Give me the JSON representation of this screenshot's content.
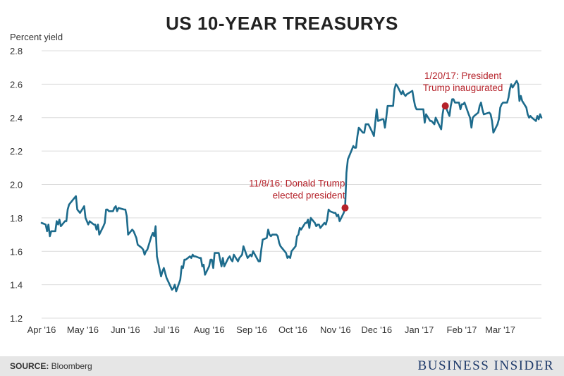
{
  "chart_data": {
    "type": "line",
    "title": "US 10-YEAR TREASURYS",
    "ylabel": "Percent yield",
    "xlabel": "",
    "ylim": [
      1.2,
      2.8
    ],
    "yticks": [
      1.2,
      1.4,
      1.6,
      1.8,
      2.0,
      2.2,
      2.4,
      2.6,
      2.8
    ],
    "ytick_labels": [
      "1.2",
      "1.4",
      "1.6",
      "1.8",
      "2.0",
      "2.2",
      "2.4",
      "2.6",
      "2.8"
    ],
    "xlim": [
      "2016-04-01",
      "2017-03-31"
    ],
    "xticks": [
      "2016-04-01",
      "2016-05-01",
      "2016-06-01",
      "2016-07-01",
      "2016-08-01",
      "2016-09-01",
      "2016-10-01",
      "2016-11-01",
      "2016-12-01",
      "2017-01-01",
      "2017-02-01",
      "2017-03-01"
    ],
    "xtick_labels": [
      "Apr '16",
      "May '16",
      "Jun '16",
      "Jul '16",
      "Aug '16",
      "Sep '16",
      "Oct '16",
      "Nov '16",
      "Dec '16",
      "Jan '17",
      "Feb '17",
      "Mar '17"
    ],
    "grid": "horizontal",
    "line_color": "#1d6b8c",
    "annotation_color": "#b5222a",
    "series": [
      {
        "points": [
          [
            "2016-04-01",
            1.77
          ],
          [
            "2016-04-04",
            1.76
          ],
          [
            "2016-04-05",
            1.72
          ],
          [
            "2016-04-06",
            1.76
          ],
          [
            "2016-04-07",
            1.69
          ],
          [
            "2016-04-08",
            1.72
          ],
          [
            "2016-04-11",
            1.72
          ],
          [
            "2016-04-12",
            1.78
          ],
          [
            "2016-04-13",
            1.76
          ],
          [
            "2016-04-14",
            1.79
          ],
          [
            "2016-04-15",
            1.75
          ],
          [
            "2016-04-18",
            1.78
          ],
          [
            "2016-04-19",
            1.78
          ],
          [
            "2016-04-20",
            1.85
          ],
          [
            "2016-04-21",
            1.88
          ],
          [
            "2016-04-22",
            1.89
          ],
          [
            "2016-04-25",
            1.92
          ],
          [
            "2016-04-26",
            1.93
          ],
          [
            "2016-04-27",
            1.85
          ],
          [
            "2016-04-28",
            1.84
          ],
          [
            "2016-04-29",
            1.83
          ],
          [
            "2016-05-02",
            1.87
          ],
          [
            "2016-05-03",
            1.8
          ],
          [
            "2016-05-04",
            1.78
          ],
          [
            "2016-05-05",
            1.76
          ],
          [
            "2016-05-06",
            1.78
          ],
          [
            "2016-05-09",
            1.76
          ],
          [
            "2016-05-10",
            1.76
          ],
          [
            "2016-05-11",
            1.73
          ],
          [
            "2016-05-12",
            1.76
          ],
          [
            "2016-05-13",
            1.7
          ],
          [
            "2016-05-16",
            1.75
          ],
          [
            "2016-05-17",
            1.77
          ],
          [
            "2016-05-18",
            1.85
          ],
          [
            "2016-05-19",
            1.85
          ],
          [
            "2016-05-20",
            1.84
          ],
          [
            "2016-05-23",
            1.84
          ],
          [
            "2016-05-24",
            1.86
          ],
          [
            "2016-05-25",
            1.87
          ],
          [
            "2016-05-26",
            1.84
          ],
          [
            "2016-05-27",
            1.86
          ],
          [
            "2016-05-31",
            1.85
          ],
          [
            "2016-06-01",
            1.85
          ],
          [
            "2016-06-02",
            1.81
          ],
          [
            "2016-06-03",
            1.7
          ],
          [
            "2016-06-06",
            1.73
          ],
          [
            "2016-06-07",
            1.72
          ],
          [
            "2016-06-08",
            1.7
          ],
          [
            "2016-06-09",
            1.68
          ],
          [
            "2016-06-10",
            1.64
          ],
          [
            "2016-06-13",
            1.62
          ],
          [
            "2016-06-14",
            1.61
          ],
          [
            "2016-06-15",
            1.58
          ],
          [
            "2016-06-16",
            1.6
          ],
          [
            "2016-06-17",
            1.61
          ],
          [
            "2016-06-20",
            1.69
          ],
          [
            "2016-06-21",
            1.71
          ],
          [
            "2016-06-22",
            1.69
          ],
          [
            "2016-06-23",
            1.75
          ],
          [
            "2016-06-24",
            1.57
          ],
          [
            "2016-06-27",
            1.45
          ],
          [
            "2016-06-28",
            1.48
          ],
          [
            "2016-06-29",
            1.5
          ],
          [
            "2016-06-30",
            1.47
          ],
          [
            "2016-07-01",
            1.44
          ],
          [
            "2016-07-05",
            1.37
          ],
          [
            "2016-07-06",
            1.38
          ],
          [
            "2016-07-07",
            1.4
          ],
          [
            "2016-07-08",
            1.36
          ],
          [
            "2016-07-11",
            1.43
          ],
          [
            "2016-07-12",
            1.51
          ],
          [
            "2016-07-13",
            1.5
          ],
          [
            "2016-07-14",
            1.55
          ],
          [
            "2016-07-15",
            1.55
          ],
          [
            "2016-07-18",
            1.57
          ],
          [
            "2016-07-19",
            1.56
          ],
          [
            "2016-07-20",
            1.58
          ],
          [
            "2016-07-21",
            1.57
          ],
          [
            "2016-07-22",
            1.57
          ],
          [
            "2016-07-25",
            1.56
          ],
          [
            "2016-07-26",
            1.56
          ],
          [
            "2016-07-27",
            1.51
          ],
          [
            "2016-07-28",
            1.52
          ],
          [
            "2016-07-29",
            1.46
          ],
          [
            "2016-08-01",
            1.51
          ],
          [
            "2016-08-02",
            1.55
          ],
          [
            "2016-08-03",
            1.55
          ],
          [
            "2016-08-04",
            1.5
          ],
          [
            "2016-08-05",
            1.59
          ],
          [
            "2016-08-08",
            1.59
          ],
          [
            "2016-08-09",
            1.55
          ],
          [
            "2016-08-10",
            1.51
          ],
          [
            "2016-08-11",
            1.56
          ],
          [
            "2016-08-12",
            1.51
          ],
          [
            "2016-08-15",
            1.56
          ],
          [
            "2016-08-16",
            1.57
          ],
          [
            "2016-08-17",
            1.55
          ],
          [
            "2016-08-18",
            1.54
          ],
          [
            "2016-08-19",
            1.58
          ],
          [
            "2016-08-22",
            1.54
          ],
          [
            "2016-08-23",
            1.56
          ],
          [
            "2016-08-24",
            1.57
          ],
          [
            "2016-08-25",
            1.58
          ],
          [
            "2016-08-26",
            1.63
          ],
          [
            "2016-08-29",
            1.56
          ],
          [
            "2016-08-30",
            1.57
          ],
          [
            "2016-08-31",
            1.58
          ],
          [
            "2016-09-01",
            1.57
          ],
          [
            "2016-09-02",
            1.6
          ],
          [
            "2016-09-06",
            1.54
          ],
          [
            "2016-09-07",
            1.54
          ],
          [
            "2016-09-08",
            1.61
          ],
          [
            "2016-09-09",
            1.67
          ],
          [
            "2016-09-12",
            1.68
          ],
          [
            "2016-09-13",
            1.73
          ],
          [
            "2016-09-14",
            1.7
          ],
          [
            "2016-09-15",
            1.69
          ],
          [
            "2016-09-16",
            1.7
          ],
          [
            "2016-09-19",
            1.7
          ],
          [
            "2016-09-20",
            1.69
          ],
          [
            "2016-09-21",
            1.65
          ],
          [
            "2016-09-22",
            1.63
          ],
          [
            "2016-09-23",
            1.62
          ],
          [
            "2016-09-26",
            1.59
          ],
          [
            "2016-09-27",
            1.56
          ],
          [
            "2016-09-28",
            1.57
          ],
          [
            "2016-09-29",
            1.56
          ],
          [
            "2016-09-30",
            1.6
          ],
          [
            "2016-10-03",
            1.63
          ],
          [
            "2016-10-04",
            1.69
          ],
          [
            "2016-10-05",
            1.7
          ],
          [
            "2016-10-06",
            1.74
          ],
          [
            "2016-10-07",
            1.73
          ],
          [
            "2016-10-10",
            1.77
          ],
          [
            "2016-10-11",
            1.77
          ],
          [
            "2016-10-12",
            1.79
          ],
          [
            "2016-10-13",
            1.74
          ],
          [
            "2016-10-14",
            1.8
          ],
          [
            "2016-10-17",
            1.77
          ],
          [
            "2016-10-18",
            1.75
          ],
          [
            "2016-10-19",
            1.76
          ],
          [
            "2016-10-20",
            1.76
          ],
          [
            "2016-10-21",
            1.74
          ],
          [
            "2016-10-24",
            1.77
          ],
          [
            "2016-10-25",
            1.76
          ],
          [
            "2016-10-26",
            1.79
          ],
          [
            "2016-10-27",
            1.85
          ],
          [
            "2016-10-28",
            1.84
          ],
          [
            "2016-10-31",
            1.83
          ],
          [
            "2016-11-01",
            1.83
          ],
          [
            "2016-11-02",
            1.81
          ],
          [
            "2016-11-03",
            1.82
          ],
          [
            "2016-11-04",
            1.78
          ],
          [
            "2016-11-07",
            1.83
          ],
          [
            "2016-11-08",
            1.86
          ],
          [
            "2016-11-09",
            2.07
          ],
          [
            "2016-11-10",
            2.15
          ],
          [
            "2016-11-14",
            2.23
          ],
          [
            "2016-11-15",
            2.22
          ],
          [
            "2016-11-16",
            2.22
          ],
          [
            "2016-11-17",
            2.29
          ],
          [
            "2016-11-18",
            2.34
          ],
          [
            "2016-11-21",
            2.31
          ],
          [
            "2016-11-22",
            2.31
          ],
          [
            "2016-11-23",
            2.36
          ],
          [
            "2016-11-25",
            2.36
          ],
          [
            "2016-11-28",
            2.31
          ],
          [
            "2016-11-29",
            2.29
          ],
          [
            "2016-11-30",
            2.37
          ],
          [
            "2016-12-01",
            2.45
          ],
          [
            "2016-12-02",
            2.38
          ],
          [
            "2016-12-05",
            2.39
          ],
          [
            "2016-12-06",
            2.39
          ],
          [
            "2016-12-07",
            2.34
          ],
          [
            "2016-12-08",
            2.4
          ],
          [
            "2016-12-09",
            2.47
          ],
          [
            "2016-12-12",
            2.47
          ],
          [
            "2016-12-13",
            2.47
          ],
          [
            "2016-12-14",
            2.57
          ],
          [
            "2016-12-15",
            2.6
          ],
          [
            "2016-12-16",
            2.59
          ],
          [
            "2016-12-19",
            2.54
          ],
          [
            "2016-12-20",
            2.56
          ],
          [
            "2016-12-21",
            2.54
          ],
          [
            "2016-12-22",
            2.53
          ],
          [
            "2016-12-23",
            2.54
          ],
          [
            "2016-12-27",
            2.56
          ],
          [
            "2016-12-28",
            2.51
          ],
          [
            "2016-12-29",
            2.47
          ],
          [
            "2016-12-30",
            2.45
          ],
          [
            "2017-01-03",
            2.45
          ],
          [
            "2017-01-04",
            2.45
          ],
          [
            "2017-01-05",
            2.37
          ],
          [
            "2017-01-06",
            2.42
          ],
          [
            "2017-01-09",
            2.38
          ],
          [
            "2017-01-10",
            2.38
          ],
          [
            "2017-01-11",
            2.37
          ],
          [
            "2017-01-12",
            2.36
          ],
          [
            "2017-01-13",
            2.4
          ],
          [
            "2017-01-17",
            2.33
          ],
          [
            "2017-01-18",
            2.42
          ],
          [
            "2017-01-19",
            2.47
          ],
          [
            "2017-01-20",
            2.47
          ],
          [
            "2017-01-23",
            2.41
          ],
          [
            "2017-01-24",
            2.47
          ],
          [
            "2017-01-25",
            2.51
          ],
          [
            "2017-01-26",
            2.51
          ],
          [
            "2017-01-27",
            2.49
          ],
          [
            "2017-01-30",
            2.49
          ],
          [
            "2017-01-31",
            2.45
          ],
          [
            "2017-02-01",
            2.48
          ],
          [
            "2017-02-02",
            2.48
          ],
          [
            "2017-02-03",
            2.49
          ],
          [
            "2017-02-06",
            2.42
          ],
          [
            "2017-02-07",
            2.4
          ],
          [
            "2017-02-08",
            2.34
          ],
          [
            "2017-02-09",
            2.4
          ],
          [
            "2017-02-10",
            2.41
          ],
          [
            "2017-02-13",
            2.43
          ],
          [
            "2017-02-14",
            2.47
          ],
          [
            "2017-02-15",
            2.49
          ],
          [
            "2017-02-16",
            2.45
          ],
          [
            "2017-02-17",
            2.42
          ],
          [
            "2017-02-21",
            2.43
          ],
          [
            "2017-02-22",
            2.42
          ],
          [
            "2017-02-23",
            2.38
          ],
          [
            "2017-02-24",
            2.31
          ],
          [
            "2017-02-27",
            2.36
          ],
          [
            "2017-02-28",
            2.39
          ],
          [
            "2017-03-01",
            2.46
          ],
          [
            "2017-03-02",
            2.48
          ],
          [
            "2017-03-03",
            2.49
          ],
          [
            "2017-03-06",
            2.49
          ],
          [
            "2017-03-07",
            2.52
          ],
          [
            "2017-03-08",
            2.57
          ],
          [
            "2017-03-09",
            2.6
          ],
          [
            "2017-03-10",
            2.58
          ],
          [
            "2017-03-13",
            2.62
          ],
          [
            "2017-03-14",
            2.6
          ],
          [
            "2017-03-15",
            2.5
          ],
          [
            "2017-03-16",
            2.53
          ],
          [
            "2017-03-17",
            2.5
          ],
          [
            "2017-03-20",
            2.46
          ],
          [
            "2017-03-21",
            2.42
          ],
          [
            "2017-03-22",
            2.4
          ],
          [
            "2017-03-23",
            2.41
          ],
          [
            "2017-03-24",
            2.4
          ],
          [
            "2017-03-27",
            2.38
          ],
          [
            "2017-03-28",
            2.41
          ],
          [
            "2017-03-29",
            2.39
          ],
          [
            "2017-03-30",
            2.42
          ],
          [
            "2017-03-31",
            2.4
          ]
        ]
      }
    ],
    "annotations": [
      {
        "date": "2016-11-08",
        "value": 1.86,
        "lines": [
          "11/8/16: Donald Trump",
          "elected president"
        ]
      },
      {
        "date": "2017-01-20",
        "value": 2.47,
        "lines": [
          "1/20/17: President",
          "Trump inaugurated"
        ]
      }
    ]
  },
  "footer": {
    "source_label": "SOURCE:",
    "source_text": " Bloomberg",
    "brand": "BUSINESS INSIDER"
  }
}
